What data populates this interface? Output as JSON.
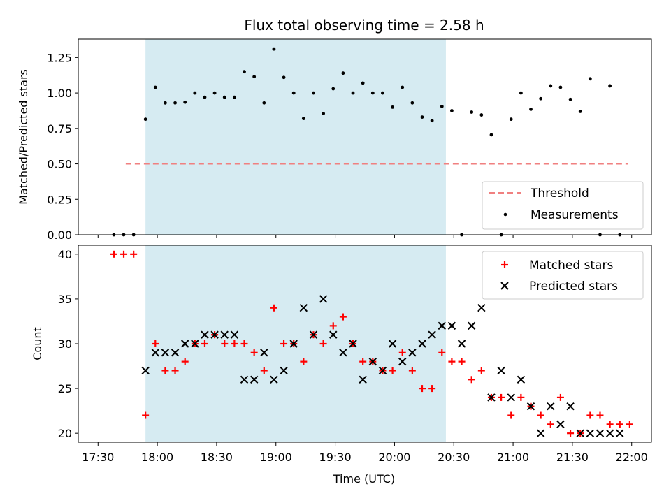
{
  "chart_data": [
    {
      "type": "scatter",
      "title": "Flux total observing time = 2.58 h",
      "xlabel": "",
      "ylabel": "Matched/Predicted stars",
      "ylim": [
        0,
        1.38
      ],
      "yticks": [
        "0.00",
        "0.25",
        "0.50",
        "0.75",
        "1.00",
        "1.25"
      ],
      "xlim": [
        "17:30",
        "22:00"
      ],
      "shaded_region": {
        "start": "17:54",
        "end": "20:26",
        "color": "#add8e6"
      },
      "threshold": {
        "name": "Threshold",
        "value": 0.5,
        "start": "17:44",
        "end": "21:58",
        "color": "#f08080"
      },
      "series": [
        {
          "name": "Measurements",
          "color": "#000000",
          "x": [
            "17:38",
            "17:43",
            "17:48",
            "17:54",
            "17:59",
            "18:04",
            "18:09",
            "18:14",
            "18:19",
            "18:24",
            "18:29",
            "18:34",
            "18:39",
            "18:44",
            "18:49",
            "18:54",
            "18:59",
            "19:04",
            "19:09",
            "19:14",
            "19:19",
            "19:24",
            "19:29",
            "19:34",
            "19:39",
            "19:44",
            "19:49",
            "19:54",
            "19:59",
            "20:04",
            "20:09",
            "20:14",
            "20:19",
            "20:24",
            "20:29",
            "20:34",
            "20:39",
            "20:44",
            "20:49",
            "20:54",
            "20:59",
            "21:04",
            "21:09",
            "21:14",
            "21:19",
            "21:24",
            "21:29",
            "21:34",
            "21:39",
            "21:44",
            "21:49",
            "21:54"
          ],
          "y": [
            0.0,
            0.0,
            0.0,
            0.815,
            1.04,
            0.93,
            0.93,
            0.935,
            1.0,
            0.97,
            1.0,
            0.97,
            0.97,
            1.15,
            1.115,
            0.93,
            1.31,
            1.11,
            1.0,
            0.82,
            1.0,
            0.855,
            1.03,
            1.14,
            1.0,
            1.07,
            1.0,
            1.0,
            0.9,
            1.04,
            0.93,
            0.83,
            0.805,
            0.905,
            0.875,
            0.0,
            0.865,
            0.845,
            0.705,
            0.0,
            0.815,
            1.0,
            0.885,
            0.96,
            1.05,
            1.04,
            0.955,
            0.87,
            1.1,
            0.0,
            1.05,
            0.0
          ]
        }
      ],
      "legend": {
        "position": "lower-right",
        "entries": [
          "Threshold",
          "Measurements"
        ]
      }
    },
    {
      "type": "scatter",
      "title": "",
      "xlabel": "Time (UTC)",
      "ylabel": "Count",
      "ylim": [
        19,
        41
      ],
      "yticks": [
        "20",
        "25",
        "30",
        "35",
        "40"
      ],
      "xticks": [
        "17:30",
        "18:00",
        "18:30",
        "19:00",
        "19:30",
        "20:00",
        "20:30",
        "21:00",
        "21:30",
        "22:00"
      ],
      "xlim": [
        "17:30",
        "22:00"
      ],
      "shaded_region": {
        "start": "17:54",
        "end": "20:26",
        "color": "#add8e6"
      },
      "series": [
        {
          "name": "Matched stars",
          "marker": "+",
          "color": "#ff0000",
          "x": [
            "17:38",
            "17:43",
            "17:48",
            "17:54",
            "17:59",
            "18:04",
            "18:09",
            "18:14",
            "18:19",
            "18:24",
            "18:29",
            "18:34",
            "18:39",
            "18:44",
            "18:49",
            "18:54",
            "18:59",
            "19:04",
            "19:09",
            "19:14",
            "19:19",
            "19:24",
            "19:29",
            "19:34",
            "19:39",
            "19:44",
            "19:49",
            "19:54",
            "19:59",
            "20:04",
            "20:09",
            "20:14",
            "20:19",
            "20:24",
            "20:29",
            "20:34",
            "20:39",
            "20:44",
            "20:49",
            "20:54",
            "20:59",
            "21:04",
            "21:09",
            "21:14",
            "21:19",
            "21:24",
            "21:29",
            "21:34",
            "21:39",
            "21:44",
            "21:49",
            "21:54",
            "21:59"
          ],
          "y": [
            40,
            40,
            40,
            22,
            30,
            27,
            27,
            28,
            30,
            30,
            31,
            30,
            30,
            30,
            29,
            27,
            34,
            30,
            30,
            28,
            31,
            30,
            32,
            33,
            30,
            28,
            28,
            27,
            27,
            29,
            27,
            25,
            25,
            29,
            28,
            28,
            26,
            27,
            24,
            24,
            22,
            24,
            23,
            22,
            21,
            24,
            20,
            20,
            22,
            22,
            21,
            21,
            21
          ]
        },
        {
          "name": "Predicted stars",
          "marker": "x",
          "color": "#000000",
          "x": [
            "17:54",
            "17:59",
            "18:04",
            "18:09",
            "18:14",
            "18:19",
            "18:24",
            "18:29",
            "18:34",
            "18:39",
            "18:44",
            "18:49",
            "18:54",
            "18:59",
            "19:04",
            "19:09",
            "19:14",
            "19:19",
            "19:24",
            "19:29",
            "19:34",
            "19:39",
            "19:44",
            "19:49",
            "19:54",
            "19:59",
            "20:04",
            "20:09",
            "20:14",
            "20:19",
            "20:24",
            "20:29",
            "20:34",
            "20:39",
            "20:44",
            "20:49",
            "20:54",
            "20:59",
            "21:04",
            "21:09",
            "21:14",
            "21:19",
            "21:24",
            "21:29",
            "21:34",
            "21:39",
            "21:44",
            "21:49",
            "21:54"
          ],
          "y": [
            27,
            29,
            29,
            29,
            30,
            30,
            31,
            31,
            31,
            31,
            26,
            26,
            29,
            26,
            27,
            30,
            34,
            31,
            35,
            31,
            29,
            30,
            26,
            28,
            27,
            30,
            28,
            29,
            30,
            31,
            32,
            32,
            30,
            32,
            34,
            24,
            27,
            24,
            26,
            23,
            20,
            23,
            21,
            23,
            20,
            20,
            20,
            20,
            20
          ]
        }
      ],
      "legend": {
        "position": "upper-right",
        "entries": [
          "Matched stars",
          "Predicted stars"
        ]
      }
    }
  ]
}
